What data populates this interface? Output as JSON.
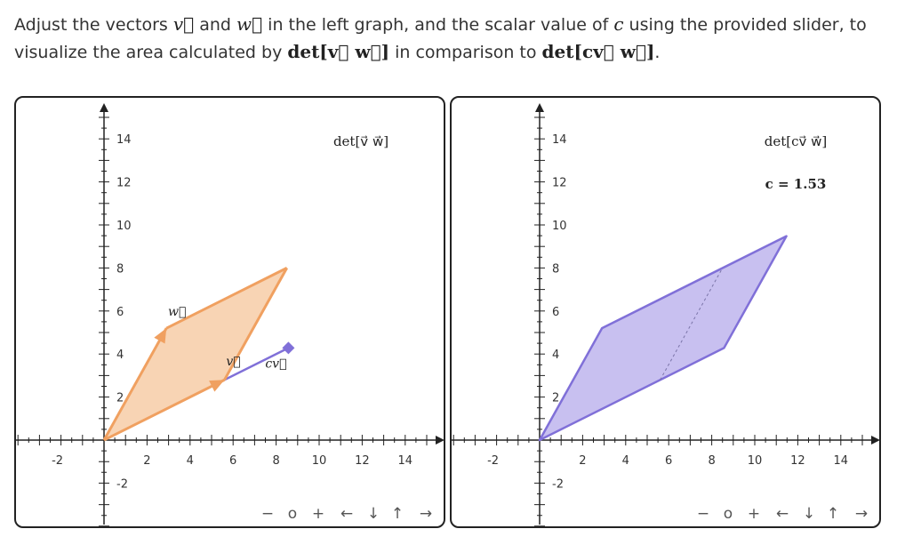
{
  "instructions": {
    "part1": "Adjust the vectors ",
    "v_symbol": "v⃗",
    "part2": " and ",
    "w_symbol": "w⃗",
    "part3": " in the left graph, and the scalar value of ",
    "c_symbol": "c",
    "part4": " using the provided slider, to",
    "part5": "visualize the area calculated by ",
    "det_vw": "det[v⃗  w⃗]",
    "part6": " in comparison to ",
    "det_cvw": "det[cv⃗  w⃗]",
    "part7": "."
  },
  "left_graph": {
    "title": "det[v⃗  w⃗]",
    "v_label": "v⃗",
    "w_label": "w⃗",
    "cv_label": "cv⃗"
  },
  "right_graph": {
    "title": "det[cv⃗  w⃗]",
    "c_readout": "c = 1.53"
  },
  "axis": {
    "x_ticks": [
      "-2",
      "2",
      "4",
      "6",
      "8",
      "10",
      "12",
      "14"
    ],
    "y_ticks": [
      "14",
      "12",
      "10",
      "8",
      "6",
      "4",
      "2",
      "-2"
    ]
  },
  "controls": {
    "zoom_out": "−",
    "reset": "o",
    "zoom_in": "+",
    "left": "←",
    "down": "↓",
    "up": "↑",
    "right": "→"
  },
  "colors": {
    "orange": "#f0a060",
    "orange_fill": "#f8d4b4",
    "purple": "#8070d8",
    "purple_fill": "#c8c0f0"
  },
  "chart_data": [
    {
      "type": "vector-plot",
      "name": "left",
      "v": [
        5.6,
        2.8
      ],
      "w": [
        2.9,
        5.2
      ],
      "c": 1.53,
      "cv": [
        8.57,
        4.28
      ],
      "xlim": [
        -4,
        15
      ],
      "ylim": [
        -4,
        15
      ],
      "title": "det[v⃗  w⃗]"
    },
    {
      "type": "vector-plot",
      "name": "right",
      "cv": [
        8.57,
        4.28
      ],
      "w": [
        2.9,
        5.2
      ],
      "c": 1.53,
      "xlim": [
        -4,
        15
      ],
      "ylim": [
        -4,
        15
      ],
      "title": "det[cv⃗  w⃗]"
    }
  ]
}
